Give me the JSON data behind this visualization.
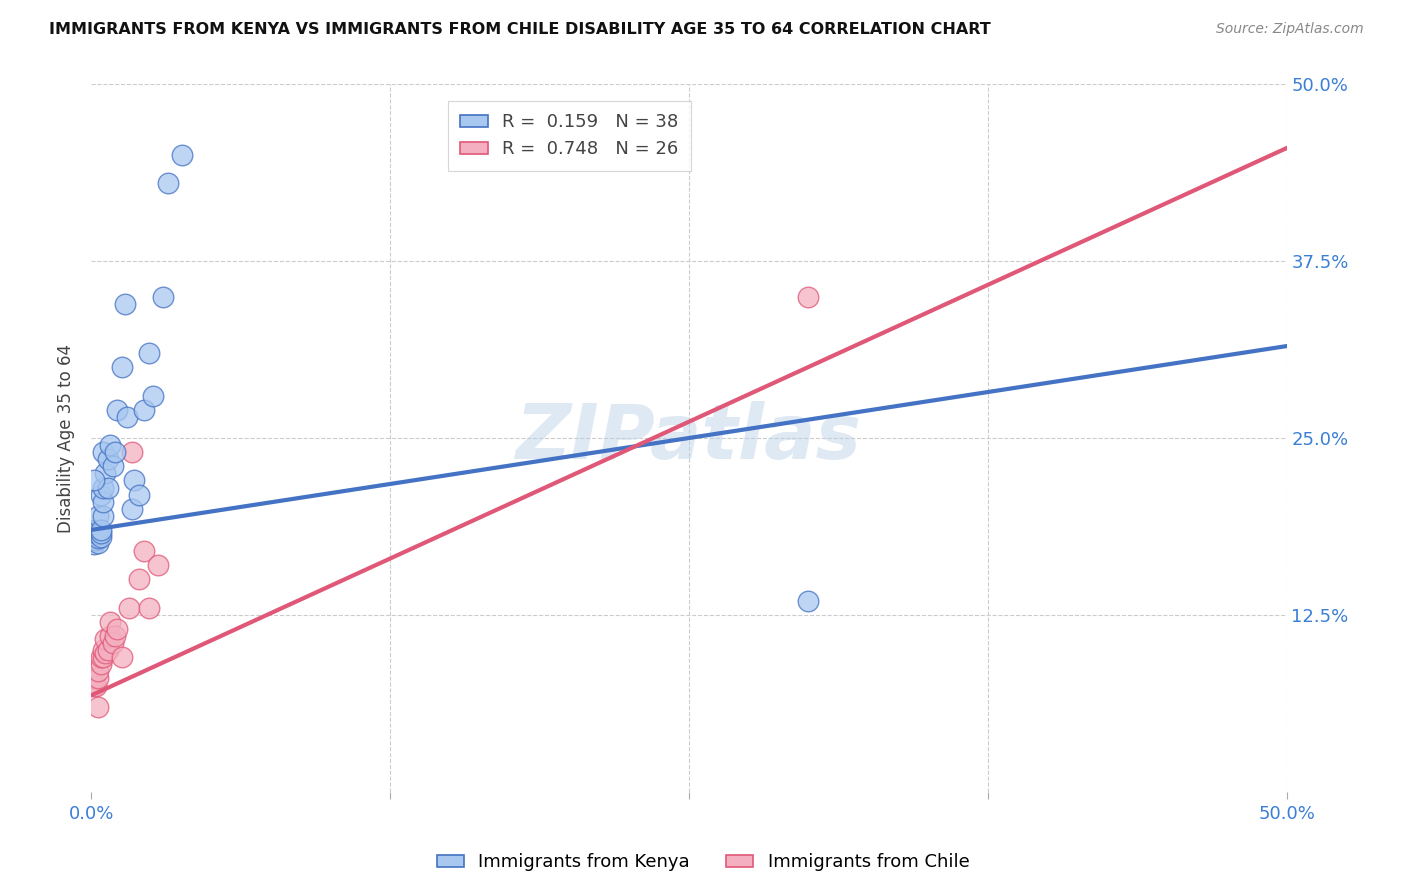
{
  "title": "IMMIGRANTS FROM KENYA VS IMMIGRANTS FROM CHILE DISABILITY AGE 35 TO 64 CORRELATION CHART",
  "source": "Source: ZipAtlas.com",
  "ylabel": "Disability Age 35 to 64",
  "xlim": [
    0.0,
    0.5
  ],
  "ylim": [
    0.0,
    0.5
  ],
  "xticks": [
    0.0,
    0.125,
    0.25,
    0.375,
    0.5
  ],
  "yticks": [
    0.0,
    0.125,
    0.25,
    0.375,
    0.5
  ],
  "xticklabels": [
    "0.0%",
    "",
    "",
    "",
    "50.0%"
  ],
  "yticklabels_right": [
    "",
    "12.5%",
    "25.0%",
    "37.5%",
    "50.0%"
  ],
  "kenya_color": "#a8c8f0",
  "kenya_edge": "#4472c4",
  "chile_color": "#f4b0c0",
  "chile_edge": "#e05878",
  "kenya_R": "0.159",
  "kenya_N": "38",
  "chile_R": "0.748",
  "chile_N": "26",
  "watermark": "ZIPatlas",
  "kenya_scatter_x": [
    0.001,
    0.001,
    0.002,
    0.002,
    0.003,
    0.003,
    0.003,
    0.003,
    0.003,
    0.004,
    0.004,
    0.004,
    0.004,
    0.005,
    0.005,
    0.005,
    0.005,
    0.006,
    0.007,
    0.007,
    0.008,
    0.009,
    0.01,
    0.011,
    0.013,
    0.014,
    0.015,
    0.017,
    0.018,
    0.02,
    0.022,
    0.024,
    0.026,
    0.03,
    0.032,
    0.038,
    0.3,
    0.001
  ],
  "kenya_scatter_y": [
    0.175,
    0.185,
    0.178,
    0.182,
    0.176,
    0.179,
    0.182,
    0.185,
    0.195,
    0.18,
    0.183,
    0.185,
    0.21,
    0.195,
    0.205,
    0.215,
    0.24,
    0.225,
    0.215,
    0.235,
    0.245,
    0.23,
    0.24,
    0.27,
    0.3,
    0.345,
    0.265,
    0.2,
    0.22,
    0.21,
    0.27,
    0.31,
    0.28,
    0.35,
    0.43,
    0.45,
    0.135,
    0.22
  ],
  "chile_scatter_x": [
    0.001,
    0.001,
    0.002,
    0.003,
    0.003,
    0.004,
    0.004,
    0.005,
    0.005,
    0.006,
    0.006,
    0.007,
    0.008,
    0.008,
    0.009,
    0.01,
    0.011,
    0.013,
    0.016,
    0.017,
    0.02,
    0.022,
    0.024,
    0.028,
    0.3,
    0.003
  ],
  "chile_scatter_y": [
    0.075,
    0.08,
    0.075,
    0.08,
    0.085,
    0.09,
    0.095,
    0.095,
    0.1,
    0.098,
    0.108,
    0.1,
    0.11,
    0.12,
    0.105,
    0.11,
    0.115,
    0.095,
    0.13,
    0.24,
    0.15,
    0.17,
    0.13,
    0.16,
    0.35,
    0.06
  ],
  "kenya_trend_x": [
    0.0,
    0.5
  ],
  "kenya_trend_y": [
    0.185,
    0.315
  ],
  "chile_trend_x": [
    0.0,
    0.5
  ],
  "chile_trend_y": [
    0.068,
    0.455
  ],
  "background_color": "#ffffff",
  "grid_color": "#cccccc"
}
